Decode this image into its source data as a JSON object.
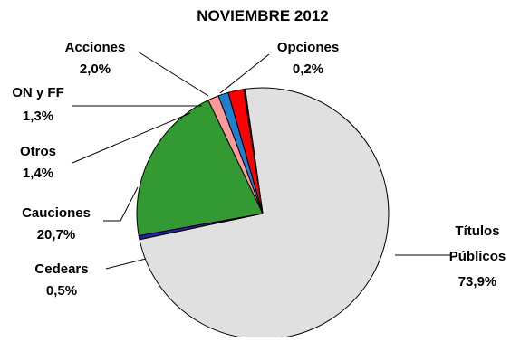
{
  "chart_data": {
    "type": "pie",
    "title": "NOVIEMBRE 2012",
    "slices": [
      {
        "name": "Títulos Públicos",
        "label_lines": [
          "Títulos",
          "Públicos",
          "73,9%"
        ],
        "value": 73.9,
        "color": "#E0E0E0"
      },
      {
        "name": "Cedears",
        "label_lines": [
          "Cedears",
          "0,5%"
        ],
        "value": 0.5,
        "color": "#2222AA"
      },
      {
        "name": "Cauciones",
        "label_lines": [
          "Cauciones",
          "20,7%"
        ],
        "value": 20.7,
        "color": "#339933"
      },
      {
        "name": "Otros",
        "label_lines": [
          "Otros",
          "1,4%"
        ],
        "value": 1.4,
        "color": "#FF9999"
      },
      {
        "name": "ON y FF",
        "label_lines": [
          "ON y FF",
          "1,3%"
        ],
        "value": 1.3,
        "color": "#1F7FD0"
      },
      {
        "name": "Acciones",
        "label_lines": [
          "Acciones",
          "2,0%"
        ],
        "value": 2.0,
        "color": "#FF0000"
      },
      {
        "name": "Opciones",
        "label_lines": [
          "Opciones",
          "0,2%"
        ],
        "value": 0.2,
        "color": "#000000"
      }
    ]
  }
}
